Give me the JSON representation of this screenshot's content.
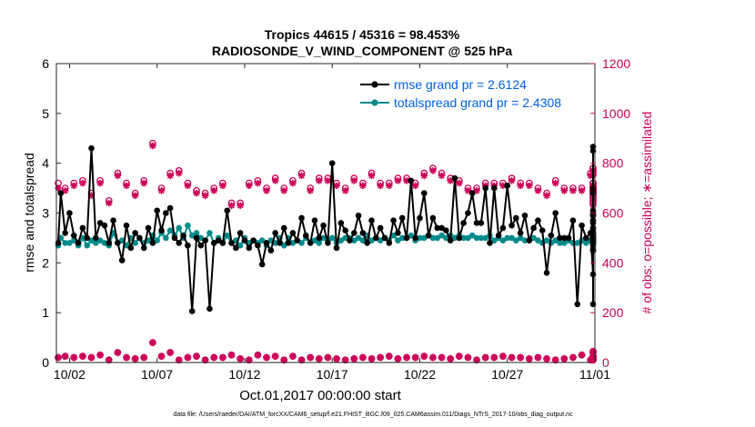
{
  "chart_data": {
    "type": "line",
    "title_line1": "Tropics 44615 / 45316 = 98.453%",
    "title_line2": "RADIOSONDE_V_WIND_COMPONENT @ 525 hPa",
    "xlabel": "Oct.01,2017 00:00:00 start",
    "ylabel_left": "rmse and totalspread",
    "ylabel_right": "# of obs: o=possible; ∗=assimilated",
    "footnote": "data file: /Users/raeder/DAI/ATM_forcXX/CAM6_setup/f.e21.FHIST_BGC.f09_025.CAM6assim.011/Diags_NTrS_2017-10/obs_diag_output.nc",
    "x_ticks": [
      "10/02",
      "10/07",
      "10/12",
      "10/17",
      "10/22",
      "10/27",
      "11/01"
    ],
    "x_tick_days": [
      1,
      6,
      11,
      16,
      21,
      26,
      31
    ],
    "xlim": [
      0.25,
      31.0
    ],
    "ylim_left": [
      0,
      6
    ],
    "y_ticks_left": [
      "0",
      "1",
      "2",
      "3",
      "4",
      "5",
      "6"
    ],
    "ylim_right": [
      0,
      1200
    ],
    "y_ticks_right": [
      "0",
      "200",
      "400",
      "600",
      "800",
      "1000",
      "1200"
    ],
    "x_start_day": 0.25,
    "x_step_day": 0.25,
    "series": [
      {
        "name": "rmse",
        "legend": "rmse grand pr = 2.6124",
        "color": "#000000",
        "values": [
          2.4,
          3.4,
          2.6,
          3.0,
          2.55,
          2.4,
          2.7,
          2.5,
          4.3,
          2.5,
          2.8,
          2.75,
          2.4,
          2.85,
          2.4,
          2.05,
          2.75,
          2.3,
          2.6,
          2.5,
          2.3,
          2.7,
          2.4,
          3.05,
          2.65,
          3.0,
          3.1,
          2.5,
          2.4,
          2.55,
          2.35,
          1.03,
          2.5,
          2.35,
          2.45,
          1.08,
          2.4,
          2.45,
          2.4,
          3.05,
          2.4,
          2.3,
          2.6,
          2.45,
          2.3,
          2.45,
          2.35,
          1.97,
          2.4,
          2.25,
          2.6,
          2.4,
          2.7,
          2.4,
          2.6,
          2.45,
          2.9,
          2.55,
          2.4,
          2.85,
          2.5,
          2.75,
          2.4,
          4.0,
          2.3,
          2.8,
          2.65,
          2.45,
          2.6,
          2.95,
          2.6,
          2.4,
          2.85,
          2.5,
          2.7,
          2.5,
          2.4,
          2.85,
          2.6,
          2.9,
          2.5,
          3.65,
          2.5,
          2.9,
          3.4,
          2.55,
          2.9,
          2.7,
          2.7,
          2.65,
          2.45,
          3.7,
          2.5,
          2.8,
          3.0,
          3.4,
          2.8,
          2.8,
          3.5,
          2.4,
          3.5,
          2.55,
          2.7,
          3.55,
          2.75,
          2.9,
          2.6,
          2.95,
          2.45,
          2.7,
          2.85,
          2.65,
          1.8,
          2.55,
          3.0,
          2.5,
          2.5,
          2.5,
          2.85,
          1.17,
          2.75,
          2.5,
          2.6,
          1.77,
          2.45,
          3.05,
          2.7,
          2.6,
          2.95,
          2.4,
          2.45,
          2.4,
          2.5,
          2.55,
          2.4,
          2.7,
          2.4,
          2.85,
          2.5,
          2.4,
          2.95,
          2.6,
          3.0,
          2.35,
          2.4,
          4.33,
          3.0,
          4.25,
          2.5,
          3.4,
          2.65,
          2.5,
          2.4,
          2.95,
          1.17,
          2.55,
          2.4,
          2.85,
          2.5,
          3.45,
          3.5,
          2.5,
          2.25,
          2.8,
          2.25
        ]
      },
      {
        "name": "totalspread",
        "legend": "totalspread grand pr = 2.4308",
        "color": "#008b8b",
        "values": [
          2.35,
          2.5,
          2.4,
          2.4,
          2.45,
          2.35,
          2.5,
          2.35,
          2.45,
          2.4,
          2.45,
          2.4,
          2.35,
          2.6,
          2.4,
          2.45,
          2.35,
          2.5,
          2.4,
          2.5,
          2.4,
          2.45,
          2.55,
          2.45,
          2.6,
          2.5,
          2.65,
          2.55,
          2.7,
          2.5,
          2.75,
          2.55,
          2.6,
          2.5,
          2.45,
          2.6,
          2.4,
          2.5,
          2.4,
          2.55,
          2.4,
          2.45,
          2.35,
          2.5,
          2.4,
          2.45,
          2.4,
          2.45,
          2.35,
          2.45,
          2.4,
          2.5,
          2.35,
          2.5,
          2.4,
          2.45,
          2.4,
          2.5,
          2.4,
          2.45,
          2.4,
          2.5,
          2.45,
          2.5,
          2.4,
          2.45,
          2.5,
          2.5,
          2.45,
          2.5,
          2.45,
          2.55,
          2.45,
          2.5,
          2.45,
          2.5,
          2.45,
          2.55,
          2.45,
          2.5,
          2.5,
          2.55,
          2.45,
          2.5,
          2.5,
          2.55,
          2.5,
          2.5,
          2.55,
          2.5,
          2.55,
          2.5,
          2.55,
          2.5,
          2.5,
          2.55,
          2.5,
          2.5,
          2.5,
          2.55,
          2.45,
          2.5,
          2.45,
          2.5,
          2.5,
          2.45,
          2.5,
          2.45,
          2.45,
          2.5,
          2.45,
          2.4,
          2.45,
          2.4,
          2.45,
          2.4,
          2.4,
          2.45,
          2.4,
          2.4,
          2.45,
          2.4,
          2.45,
          2.4,
          2.45,
          2.4,
          2.45,
          2.4,
          2.45,
          2.4,
          2.45,
          2.4,
          2.45,
          2.4,
          2.5,
          2.4,
          2.45,
          2.4,
          2.5,
          2.45,
          2.5,
          2.45,
          2.55,
          2.5,
          2.6,
          2.45,
          2.55,
          2.5,
          2.55,
          2.5,
          2.55,
          2.45,
          2.55,
          2.5,
          2.45,
          2.4,
          2.5,
          2.45,
          2.4,
          2.45,
          2.45,
          2.45,
          2.3,
          2.25
        ]
      }
    ],
    "obs_possible": {
      "color": "#cc0055",
      "values": [
        720,
        660,
        700,
        640,
        720,
        670,
        730,
        640,
        680,
        640,
        730,
        700,
        650,
        700,
        760,
        700,
        720,
        770,
        680,
        670,
        730,
        640,
        880,
        660,
        700,
        680,
        760,
        740,
        770,
        760,
        720,
        740,
        690,
        720,
        680,
        730,
        700,
        720,
        720,
        680,
        640,
        700,
        640,
        660,
        720,
        680,
        730,
        760,
        700,
        740,
        740,
        770,
        700,
        760,
        730,
        760,
        760,
        740,
        700,
        730,
        740,
        720,
        740,
        720,
        720,
        720,
        700,
        730,
        740,
        700,
        720,
        780,
        760,
        740,
        720,
        720,
        720,
        700,
        740,
        740,
        740,
        680,
        720,
        700,
        760,
        720,
        780,
        680,
        760,
        740,
        740,
        700,
        730,
        760,
        700,
        740,
        700,
        740,
        720,
        740,
        720,
        700,
        720,
        700,
        740,
        700,
        720,
        760,
        720,
        720,
        700,
        740,
        680,
        720,
        730,
        720,
        700,
        720,
        700,
        720,
        700,
        720,
        760,
        720,
        760,
        700,
        720,
        700,
        720,
        720,
        700,
        720,
        660,
        720,
        680,
        640,
        660,
        700,
        720,
        680,
        680,
        700,
        780,
        700,
        780,
        700,
        660,
        700,
        700,
        700,
        720,
        720,
        700,
        680,
        720,
        680,
        640,
        700,
        700,
        700,
        680,
        640,
        700
      ]
    },
    "obs_assimilated": {
      "color": "#cc0055",
      "values": [
        700,
        650,
        690,
        630,
        710,
        660,
        720,
        630,
        670,
        630,
        720,
        690,
        640,
        690,
        750,
        690,
        710,
        760,
        670,
        660,
        720,
        630,
        870,
        650,
        690,
        670,
        750,
        730,
        760,
        750,
        710,
        730,
        680,
        710,
        670,
        720,
        690,
        710,
        710,
        670,
        630,
        690,
        630,
        650,
        710,
        670,
        720,
        750,
        690,
        730,
        730,
        760,
        690,
        750,
        720,
        750,
        750,
        730,
        690,
        720,
        730,
        710,
        730,
        710,
        710,
        710,
        690,
        720,
        730,
        690,
        710,
        770,
        750,
        730,
        710,
        710,
        710,
        690,
        730,
        730,
        730,
        670,
        710,
        690,
        750,
        710,
        770,
        670,
        750,
        730,
        730,
        690,
        720,
        750,
        690,
        730,
        690,
        730,
        710,
        730,
        710,
        690,
        710,
        690,
        730,
        690,
        710,
        750,
        710,
        710,
        690,
        730,
        670,
        710,
        720,
        710,
        690,
        710,
        690,
        710,
        690,
        710,
        750,
        710,
        750,
        690,
        710,
        690,
        710,
        710,
        690,
        710,
        650,
        710,
        670,
        630,
        650,
        690,
        710,
        670,
        670,
        690,
        770,
        690,
        770,
        690,
        650,
        690,
        690,
        690,
        710,
        710,
        690,
        670,
        710,
        670,
        630,
        690,
        690,
        690,
        670,
        630,
        690
      ]
    },
    "obs_possible_low": {
      "values": [
        20,
        15,
        25,
        10,
        20,
        15,
        25,
        10,
        20,
        15,
        30,
        20,
        10,
        25,
        40,
        30,
        20,
        35,
        15,
        25,
        20,
        10,
        80,
        55,
        25,
        15,
        40,
        20,
        10,
        30,
        20,
        10,
        25,
        15,
        10,
        30,
        20,
        10,
        20,
        15,
        30,
        10,
        15,
        20,
        10,
        25,
        30,
        15,
        20,
        10,
        25,
        20,
        10,
        15,
        25,
        20,
        10,
        15,
        20,
        25,
        15,
        10,
        20,
        25,
        15,
        20,
        10,
        20,
        15,
        30,
        20,
        10,
        15,
        25,
        20,
        10,
        25,
        20,
        15,
        10,
        20,
        15,
        20,
        10,
        25,
        15,
        20,
        30,
        20,
        10,
        15,
        20,
        25,
        10,
        20,
        15,
        10,
        25,
        20,
        10,
        20,
        15,
        25,
        10,
        20,
        30,
        20,
        10,
        15,
        25,
        20,
        10,
        15,
        20,
        10,
        20,
        15,
        25,
        20,
        10,
        30,
        20,
        10,
        25,
        20,
        10,
        20,
        10,
        15,
        25,
        20,
        10,
        15,
        20,
        25,
        10,
        15,
        20,
        25,
        15,
        10,
        20,
        40,
        25,
        15,
        10,
        20,
        25,
        10,
        15,
        20,
        10,
        25,
        20,
        15,
        10,
        20,
        25,
        15,
        10,
        45,
        30,
        15
      ]
    }
  }
}
